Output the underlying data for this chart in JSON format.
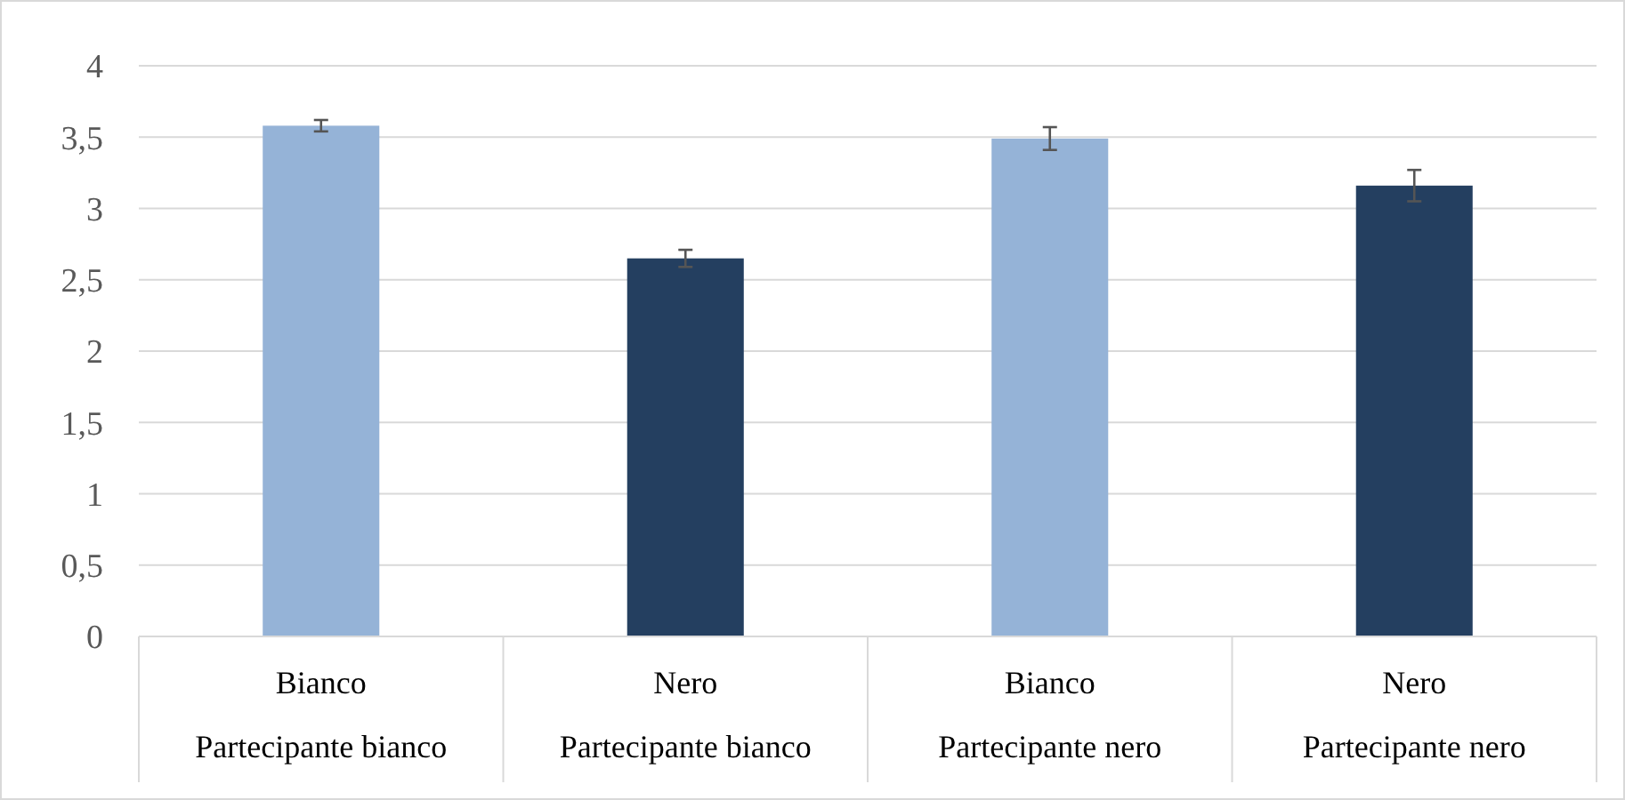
{
  "chart_data": {
    "type": "bar",
    "categories": [
      "Bianco\nPartecipante bianco",
      "Nero\nPartecipante bianco",
      "Bianco\nPartecipante nero",
      "Nero\nPartecipante nero"
    ],
    "values": [
      3.58,
      2.65,
      3.49,
      3.16
    ],
    "errors": [
      0.04,
      0.06,
      0.08,
      0.11
    ],
    "colors": [
      "#95b3d7",
      "#243f60",
      "#95b3d7",
      "#243f60"
    ],
    "ylim": [
      0,
      4
    ],
    "yticks": [
      0,
      {
        "value": 0.5,
        "label": "0,5"
      },
      1,
      {
        "value": 1.5,
        "label": "1,5"
      },
      2,
      {
        "value": 2.5,
        "label": "2,5"
      },
      3,
      {
        "value": 3.5,
        "label": "3,5"
      },
      4
    ],
    "grid": "y"
  }
}
